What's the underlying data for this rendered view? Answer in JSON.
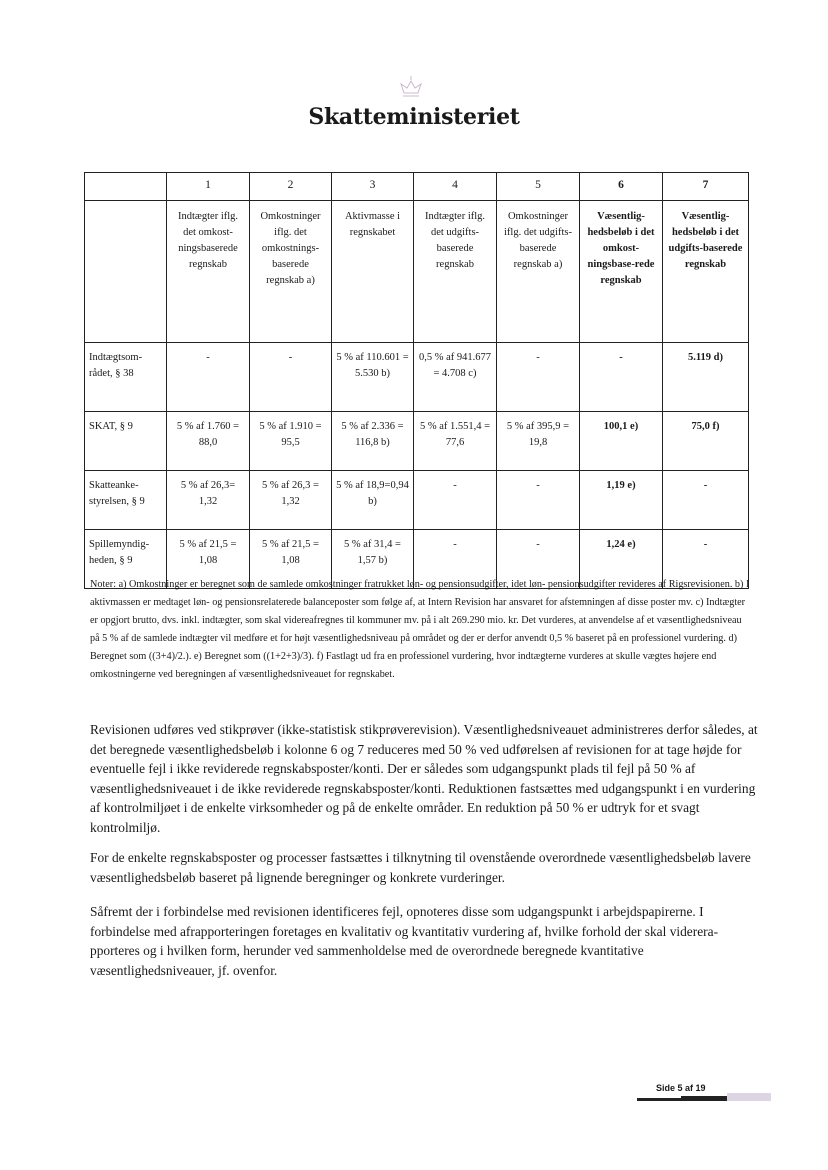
{
  "header": {
    "title": "Skatteministeriet",
    "logo_icon": "crown-icon"
  },
  "table": {
    "col_numbers": [
      "",
      "1",
      "2",
      "3",
      "4",
      "5",
      "6",
      "7"
    ],
    "col_descriptions": [
      "",
      "Indtægter iflg. det omkost-ningsbaserede regnskab",
      "Omkostninger iflg. det omkostnings-baserede regnskab a)",
      "Aktivmasse i regnskabet",
      "Indtægter iflg. det udgifts-baserede regnskab",
      "Omkostninger iflg. det udgifts-baserede regnskab a)",
      "Væsentlig-hedsbeløb i det omkost-ningsbase-rede regnskab",
      "Væsentlig-hedsbeløb i det udgifts-baserede regnskab"
    ],
    "rows": [
      [
        "Indtægtsom-rådet, § 38",
        "-",
        "-",
        "5 % af 110.601 = 5.530 b)",
        "0,5 % af 941.677 = 4.708 c)",
        "-",
        "-",
        "5.119 d)"
      ],
      [
        "SKAT, § 9",
        "5 % af 1.760 = 88,0",
        "5 % af 1.910 = 95,5",
        "5 % af 2.336 = 116,8 b)",
        "5 % af 1.551,4 = 77,6",
        "5 % af 395,9 = 19,8",
        "100,1 e)",
        "75,0 f)"
      ],
      [
        "Skatteanke-styrelsen, § 9",
        "5 % af 26,3= 1,32",
        "5 % af 26,3 = 1,32",
        "5 % af 18,9=0,94 b)",
        "-",
        "-",
        "1,19 e)",
        "-"
      ],
      [
        "Spillemyndig-heden, § 9",
        "5 % af 21,5 = 1,08",
        "5 % af 21,5 = 1,08",
        "5 % af 31,4 = 1,57 b)",
        "-",
        "-",
        "1,24 e)",
        "-"
      ]
    ]
  },
  "notes": "Noter: a) Omkostninger er beregnet som de samlede omkostninger fratrukket løn- og pensionsudgifter, idet løn- pensionsudgifter revideres af Rigsrevisionen. b) I aktivmassen er medtaget løn- og pensionsrelaterede balanceposter som følge af, at Intern Revision har ansvaret for afstemningen af disse poster mv. c) Indtægter er opgjort brutto, dvs. inkl. indtægter, som skal videreafregnes til kommuner mv. på i alt 269.290 mio. kr. Det vurderes, at anvendelse af et væsentlighedsniveau på 5 % af de samlede indtægter vil medføre et for højt væsentlighedsniveau på området og der er derfor anvendt 0,5 % baseret på en professionel vurdering. d) Beregnet som ((3+4)/2.). e) Beregnet som ((1+2+3)/3). f) Fastlagt ud fra en professionel vurdering, hvor indtægterne vurderes at skulle vægtes højere end omkostningerne ved beregningen af væsentlighedsniveauet for regnskabet.",
  "paragraphs": [
    "Revisionen udføres ved stikprøver (ikke-statistisk stikprøverevision). Væsentlighedsniveauet administreres derfor således, at det beregnede væsentlighedsbeløb i kolonne 6 og 7 reduceres med 50 % ved udførelsen af revisionen for at tage højde for eventuelle fejl i ikke reviderede regnskabsposter/konti. Der er således som udgangspunkt plads til fejl på 50 % af væsentlighedsniveauet i de ikke reviderede regnskabsposter/konti. Reduktionen fastsættes med udgangspunkt i en vurdering af kontrolmiljøet i de enkelte virksomheder og på de enkelte områder. En reduktion på 50 % er udtryk for et svagt kontrolmiljø.",
    "For de enkelte regnskabsposter og processer fastsættes i tilknytning til ovenstående overordnede væsentlighedsbeløb lavere væsentlighedsbeløb baseret på lignende beregninger og konkrete vurderinger.",
    "Såfremt der i forbindelse med revisionen identificeres fejl, opnoteres disse som udgangspunkt i arbejdspapirerne. I forbindelse med afrapporteringen foretages en kvalitativ og kvantitativ vurdering af, hvilke forhold der skal viderera­pporteres og i hvilken form, herunder ved sammenholdelse med de overordnede beregnede kvantitative væsentlighedsniveauer, jf. ovenfor."
  ],
  "footer": {
    "page_label": "Side 5 af 19"
  }
}
